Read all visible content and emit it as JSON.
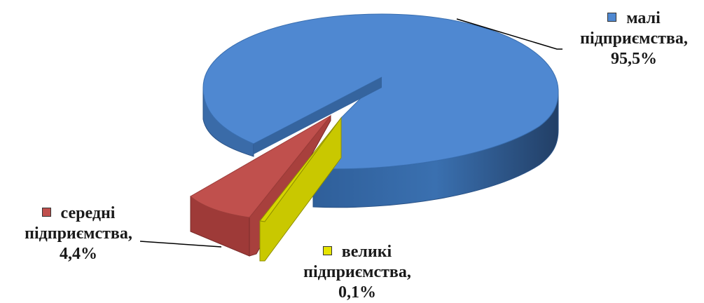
{
  "chart_data": {
    "type": "pie",
    "three_d": true,
    "slices": [
      {
        "label_line1": "малі",
        "label_line2": "підприємства,",
        "value_label": "95,5%",
        "value": 95.5,
        "color": "#4f88d1",
        "exploded": false
      },
      {
        "label_line1": "середні",
        "label_line2": "підприємства,",
        "value_label": "4,4%",
        "value": 4.4,
        "color": "#c0504d",
        "exploded": true
      },
      {
        "label_line1": "великі",
        "label_line2": "підприємства,",
        "value_label": "0,1%",
        "value": 0.1,
        "color": "#c9c800",
        "exploded": true
      }
    ]
  }
}
